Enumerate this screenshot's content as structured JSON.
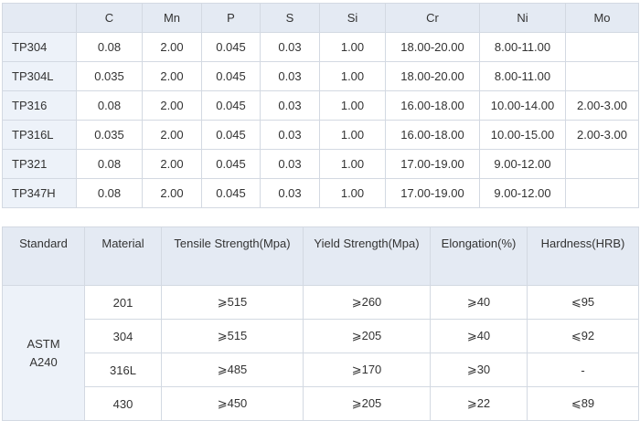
{
  "composition": {
    "headers": [
      "",
      "C",
      "Mn",
      "P",
      "S",
      "Si",
      "Cr",
      "Ni",
      "Mo"
    ],
    "rows": [
      [
        "TP304",
        "0.08",
        "2.00",
        "0.045",
        "0.03",
        "1.00",
        "18.00-20.00",
        "8.00-11.00",
        ""
      ],
      [
        "TP304L",
        "0.035",
        "2.00",
        "0.045",
        "0.03",
        "1.00",
        "18.00-20.00",
        "8.00-11.00",
        ""
      ],
      [
        "TP316",
        "0.08",
        "2.00",
        "0.045",
        "0.03",
        "1.00",
        "16.00-18.00",
        "10.00-14.00",
        "2.00-3.00"
      ],
      [
        "TP316L",
        "0.035",
        "2.00",
        "0.045",
        "0.03",
        "1.00",
        "16.00-18.00",
        "10.00-15.00",
        "2.00-3.00"
      ],
      [
        "TP321",
        "0.08",
        "2.00",
        "0.045",
        "0.03",
        "1.00",
        "17.00-19.00",
        "9.00-12.00",
        ""
      ],
      [
        "TP347H",
        "0.08",
        "2.00",
        "0.045",
        "0.03",
        "1.00",
        "17.00-19.00",
        "9.00-12.00",
        ""
      ]
    ]
  },
  "mechanical": {
    "headers": [
      "Standard",
      "Material",
      "Tensile Strength(Mpa)",
      "Yield Strength(Mpa)",
      "Elongation(%)",
      "Hardness(HRB)"
    ],
    "standard_line1": "ASTM",
    "standard_line2": "A240",
    "rows": [
      [
        "201",
        "⩾515",
        "⩾260",
        "⩾40",
        "⩽95"
      ],
      [
        "304",
        "⩾515",
        "⩾205",
        "⩾40",
        "⩽92"
      ],
      [
        "316L",
        "⩾485",
        "⩾170",
        "⩾30",
        "-"
      ],
      [
        "430",
        "⩾450",
        "⩾205",
        "⩾22",
        "⩽89"
      ]
    ]
  }
}
